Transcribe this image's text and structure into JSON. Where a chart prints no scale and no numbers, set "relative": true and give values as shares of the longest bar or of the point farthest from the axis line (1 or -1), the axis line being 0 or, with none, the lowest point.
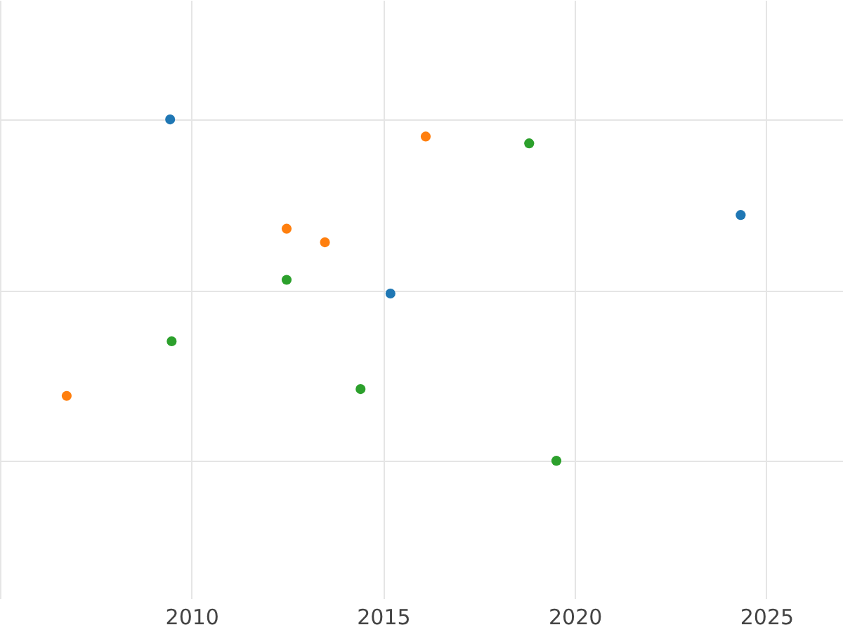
{
  "chart_data": {
    "type": "scatter",
    "relative": true,
    "xlim": [
      2005,
      2027
    ],
    "xticks": [
      {
        "value": 2005,
        "label": null
      },
      2010,
      2015,
      2020,
      2025
    ],
    "grid": true,
    "marker": "circle",
    "series": [
      {
        "color": "#1f77b4",
        "x": [
          2009.44,
          2024.33,
          2015.19
        ],
        "values": [
          1,
          0.72,
          0.49
        ]
      },
      {
        "color": "#ff7f0e",
        "x": [
          2016.11,
          2012.48,
          2013.48,
          2006.74
        ],
        "values": [
          0.95,
          0.68,
          0.64,
          0.19
        ]
      },
      {
        "color": "#2ca02c",
        "x": [
          2018.81,
          2012.48,
          2009.48,
          2014.41,
          2019.52
        ],
        "values": [
          0.93,
          0.53,
          0.35,
          0.21,
          0
        ]
      }
    ]
  }
}
